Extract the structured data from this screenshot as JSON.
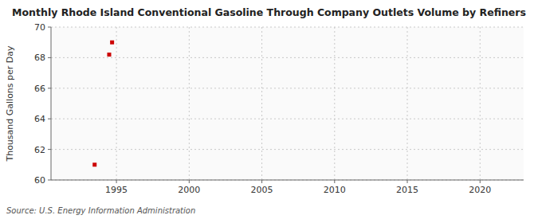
{
  "chart_data": {
    "type": "scatter",
    "title": "Monthly Rhode Island Conventional Gasoline Through Company Outlets Volume by Refiners",
    "y_label": "Thousand Gallons per Day",
    "source": "Source: U.S. Energy Information Administration",
    "x": [
      1993.5,
      1994.5,
      1994.7
    ],
    "values": [
      61.0,
      68.2,
      69.0
    ],
    "color": "#cc0000",
    "marker": "square",
    "xlim": [
      1990.5,
      2023
    ],
    "ylim": [
      60,
      70
    ],
    "xticks": [
      1995,
      2000,
      2005,
      2010,
      2015,
      2020
    ],
    "yticks": [
      60,
      62,
      64,
      66,
      68,
      70
    ],
    "grid": true
  }
}
